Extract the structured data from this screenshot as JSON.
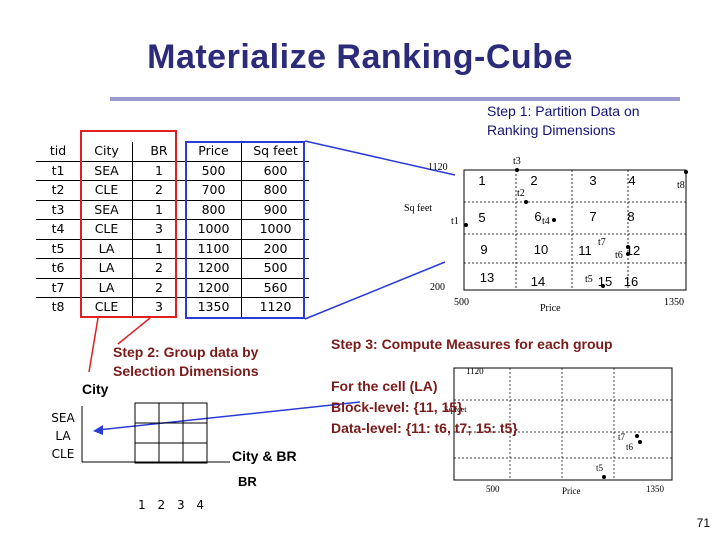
{
  "title": "Materialize Ranking-Cube",
  "steps": {
    "step1": [
      "Step 1: Partition Data on",
      "Ranking Dimensions"
    ],
    "step2": [
      "Step 2: Group data by",
      "Selection Dimensions"
    ],
    "step3": "Step 3: Compute Measures for each group"
  },
  "table": {
    "headers": [
      "tid",
      "City",
      "BR",
      "Price",
      "Sq feet"
    ],
    "rows": [
      [
        "t1",
        "SEA",
        "1",
        "500",
        "600"
      ],
      [
        "t2",
        "CLE",
        "2",
        "700",
        "800"
      ],
      [
        "t3",
        "SEA",
        "1",
        "800",
        "900"
      ],
      [
        "t4",
        "CLE",
        "3",
        "1000",
        "1000"
      ],
      [
        "t5",
        "LA",
        "1",
        "1100",
        "200"
      ],
      [
        "t6",
        "LA",
        "2",
        "1200",
        "500"
      ],
      [
        "t7",
        "LA",
        "2",
        "1200",
        "560"
      ],
      [
        "t8",
        "CLE",
        "3",
        "1350",
        "1120"
      ]
    ]
  },
  "partition_plot": {
    "ylabel": "Sq feet",
    "xlabel": "Price",
    "y_ticks": [
      "1120",
      "200"
    ],
    "x_ticks": [
      "500",
      "1350"
    ],
    "cells": [
      [
        "1",
        "2",
        "3",
        "4"
      ],
      [
        "5",
        "6",
        "7",
        "8"
      ],
      [
        "9",
        "10",
        "11",
        "12"
      ],
      [
        "13",
        "14",
        "15",
        "16"
      ]
    ],
    "points": [
      "t1",
      "t2",
      "t3",
      "t4",
      "t5",
      "t6",
      "t7",
      "t8"
    ]
  },
  "cube": {
    "city_label": "City",
    "city_values": [
      "SEA",
      "LA",
      "CLE"
    ],
    "br_label": "BR",
    "br_values": [
      "1",
      "2",
      "3",
      "4"
    ],
    "city_br_label": "City & BR"
  },
  "measures": {
    "line1": "For the cell (LA)",
    "line2": "Block-level: {11, 15}",
    "line3": "Data-level: {11: t6, t7; 15: t5}"
  },
  "small_plot": {
    "y_tick": "1120",
    "x_ticks": [
      "500",
      "1350"
    ],
    "xlabel": "Price",
    "ylabel": "Sq feet",
    "points": [
      "t7",
      "t6",
      "t5"
    ]
  },
  "page_number": "71",
  "colors": {
    "title": "#2b2b7a",
    "step_text": "#12127a",
    "maroon": "#7a1a1a",
    "red": "#e02020",
    "blue": "#2a3bd8"
  }
}
